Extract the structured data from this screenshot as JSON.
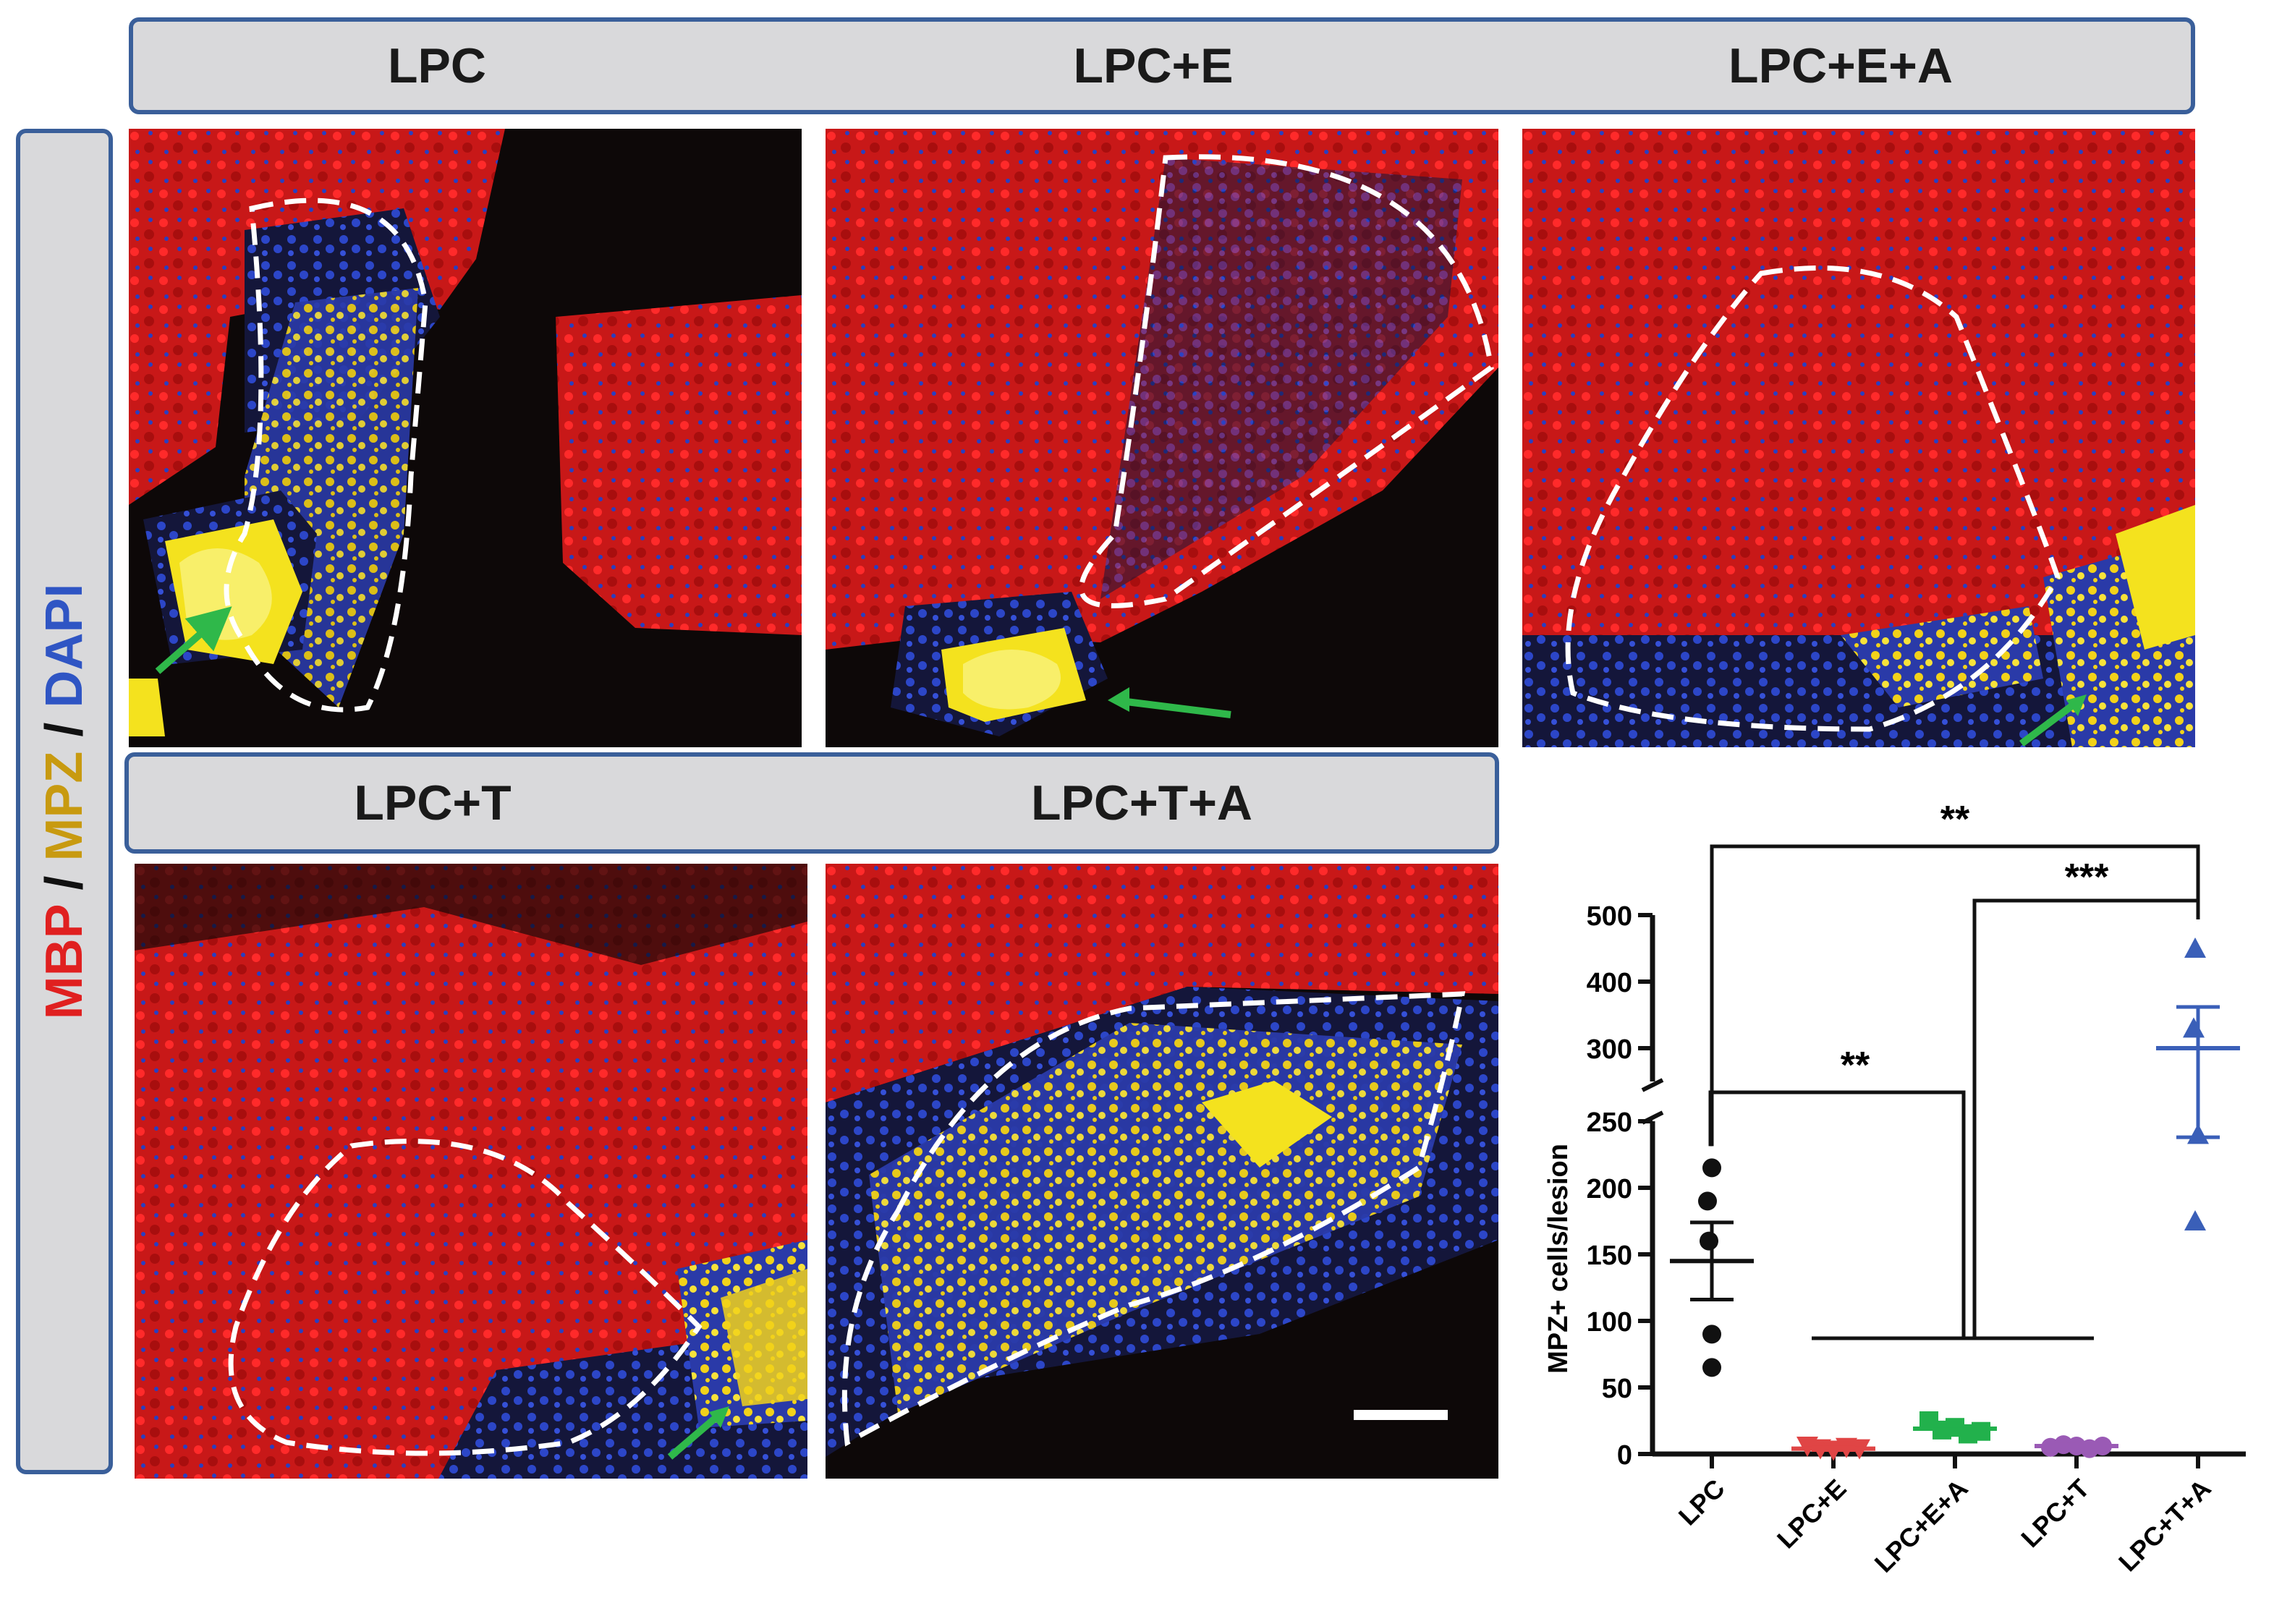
{
  "headers": {
    "row1": [
      "LPC",
      "LPC+E",
      "LPC+E+A"
    ],
    "row2": [
      "LPC+T",
      "LPC+T+A"
    ]
  },
  "stain_label": {
    "mbp": "MBP",
    "mpz": "MPZ",
    "dapi": "DAPI",
    "separator": " / "
  },
  "colors": {
    "mbp": "#e02020",
    "mpz": "#c89a10",
    "dapi": "#2f55c4",
    "header_border": "#3a5f9a",
    "arrow": "#2fb84a"
  },
  "chart_data": {
    "type": "scatter",
    "ylabel": "MPZ+ cells/lesion",
    "categories": [
      "LPC",
      "LPC+E",
      "LPC+E+A",
      "LPC+T",
      "LPC+T+A"
    ],
    "y_axis": {
      "broken": true,
      "lower_segment": {
        "range": [
          0,
          250
        ],
        "ticks": [
          0,
          50,
          100,
          150,
          200,
          250
        ]
      },
      "upper_segment": {
        "range": [
          250,
          500
        ],
        "ticks": [
          300,
          400,
          500
        ]
      }
    },
    "series": [
      {
        "category": "LPC",
        "marker": "circle",
        "color": "#111111",
        "values": [
          215,
          190,
          160,
          90,
          65
        ],
        "mean": 145,
        "sem": 29
      },
      {
        "category": "LPC+E",
        "marker": "triangle-down",
        "color": "#e04545",
        "values": [
          6,
          4,
          3,
          5,
          4
        ],
        "mean": 4,
        "sem": 1
      },
      {
        "category": "LPC+E+A",
        "marker": "square",
        "color": "#22b14c",
        "values": [
          25,
          18,
          20,
          15,
          17
        ],
        "mean": 19,
        "sem": 2
      },
      {
        "category": "LPC+T",
        "marker": "circle",
        "color": "#9a5ab5",
        "values": [
          5,
          7,
          6,
          4,
          6
        ],
        "mean": 6,
        "sem": 1
      },
      {
        "category": "LPC+T+A",
        "marker": "triangle-up",
        "color": "#3a5fb8",
        "values": [
          450,
          330,
          240,
          175
        ],
        "mean": 300,
        "sem": 62
      }
    ],
    "significance": [
      {
        "label": "**",
        "from": "LPC",
        "to": "LPC+T+A"
      },
      {
        "label": "***",
        "from": "LPC+E / LPC+E+A / LPC+T",
        "to": "LPC+T+A"
      },
      {
        "label": "**",
        "from": "LPC",
        "to": "LPC+E / LPC+E+A / LPC+T"
      }
    ]
  }
}
